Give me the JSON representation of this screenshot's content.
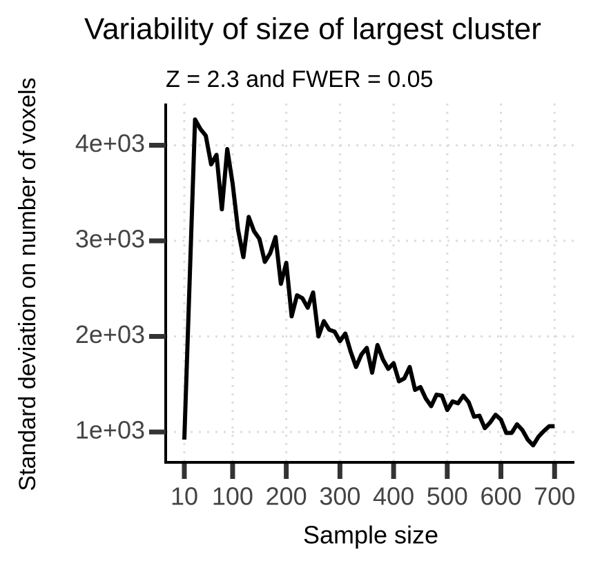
{
  "chart_data": {
    "type": "line",
    "title": "Variability of size of largest cluster",
    "subtitle": "Z = 2.3 and FWER = 0.05",
    "x_label": "Sample size",
    "y_label": "Standard deviation on number of voxels",
    "x": [
      10,
      30,
      40,
      50,
      60,
      70,
      80,
      90,
      100,
      110,
      120,
      130,
      140,
      150,
      160,
      170,
      180,
      190,
      200,
      210,
      220,
      230,
      240,
      250,
      260,
      270,
      280,
      290,
      300,
      310,
      320,
      330,
      340,
      350,
      360,
      370,
      380,
      390,
      400,
      410,
      420,
      430,
      440,
      450,
      460,
      470,
      480,
      490,
      500,
      510,
      520,
      530,
      540,
      550,
      560,
      570,
      580,
      590,
      600,
      610,
      620,
      630,
      640,
      650,
      660,
      670,
      680,
      690,
      700
    ],
    "series": [
      {
        "name": "sd",
        "color": "#000000",
        "values": [
          920,
          4270,
          4170,
          4100,
          3800,
          3900,
          3330,
          3960,
          3600,
          3120,
          2830,
          3250,
          3100,
          3020,
          2780,
          2870,
          3040,
          2550,
          2770,
          2210,
          2430,
          2400,
          2300,
          2460,
          2000,
          2160,
          2070,
          2050,
          1950,
          2030,
          1840,
          1680,
          1810,
          1880,
          1620,
          1910,
          1760,
          1660,
          1720,
          1530,
          1560,
          1680,
          1440,
          1470,
          1350,
          1270,
          1390,
          1380,
          1230,
          1320,
          1300,
          1380,
          1310,
          1160,
          1170,
          1040,
          1100,
          1180,
          1130,
          990,
          990,
          1080,
          1020,
          920,
          860,
          950,
          1010,
          1060,
          1060
        ]
      }
    ],
    "xlim": [
      -24.7,
      737
    ],
    "ylim": [
      682,
      4437
    ],
    "xticks": [
      10,
      100,
      200,
      300,
      400,
      500,
      600,
      700
    ],
    "yticks": [
      {
        "value": 1000,
        "label": "1e+03"
      },
      {
        "value": 2000,
        "label": "2e+03"
      },
      {
        "value": 3000,
        "label": "3e+03"
      },
      {
        "value": 4000,
        "label": "4e+03"
      }
    ],
    "grid": true
  }
}
